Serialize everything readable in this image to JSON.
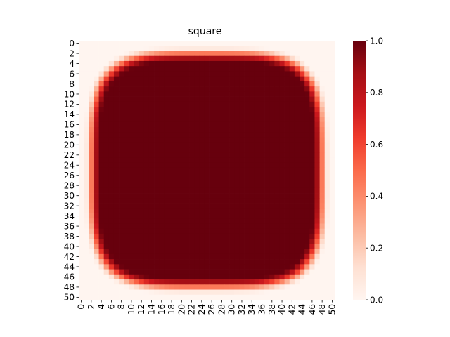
{
  "chart_data": {
    "type": "heatmap",
    "title": "square",
    "xlabel": "",
    "ylabel": "",
    "rows": 51,
    "cols": 51,
    "x_ticks": [
      "0",
      "2",
      "4",
      "6",
      "8",
      "10",
      "12",
      "14",
      "16",
      "18",
      "20",
      "22",
      "24",
      "26",
      "28",
      "30",
      "32",
      "34",
      "36",
      "38",
      "40",
      "42",
      "44",
      "46",
      "48",
      "50"
    ],
    "y_ticks": [
      "0",
      "2",
      "4",
      "6",
      "8",
      "10",
      "12",
      "14",
      "16",
      "18",
      "20",
      "22",
      "24",
      "26",
      "28",
      "30",
      "32",
      "34",
      "36",
      "38",
      "40",
      "42",
      "44",
      "46",
      "48",
      "50"
    ],
    "value_range": [
      0.0,
      1.0
    ],
    "colormap": "Reds",
    "colormap_stops": [
      "#fff5f0",
      "#fee0d2",
      "#fcbba1",
      "#fc9272",
      "#fb6a4a",
      "#ef3b2c",
      "#cb181d",
      "#a50f15",
      "#67000d"
    ],
    "colorbar_ticks": [
      "0.0",
      "0.2",
      "0.4",
      "0.6",
      "0.8",
      "1.0"
    ],
    "colorbar_values": [
      0.0,
      0.2,
      0.4,
      0.6,
      0.8,
      1.0
    ],
    "field": {
      "shape": "superellipse",
      "center": [
        25,
        25
      ],
      "exponent": 4,
      "radius": 24.5,
      "edge_width": 3.2,
      "outside_value": 0.0,
      "inside_value": 1.0
    }
  }
}
